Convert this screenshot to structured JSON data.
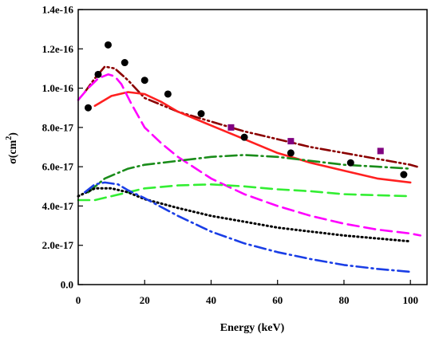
{
  "chart_data": {
    "type": "line",
    "xlabel": "Energy (keV)",
    "ylabel": "σ(cm",
    "ylabel_sup": "2",
    "ylabel_close": ")",
    "xlim": [
      0,
      105
    ],
    "ylim": [
      0,
      1.4e-16
    ],
    "x_ticks": [
      0,
      20,
      40,
      60,
      80,
      100
    ],
    "x_tick_labels": [
      "0",
      "20",
      "40",
      "60",
      "80",
      "100"
    ],
    "y_ticks": [
      0,
      2e-17,
      4e-17,
      6e-17,
      8e-17,
      1e-16,
      1.2e-16,
      1.4e-16
    ],
    "y_tick_labels": [
      "0.0",
      "2.0e-17",
      "4.0e-17",
      "6.0e-17",
      "8.0e-17",
      "1.0e-16",
      "1.2e-16",
      "1.4e-16"
    ],
    "grid": false,
    "series": [
      {
        "kind": "points",
        "marker": "circle",
        "color": "#000000",
        "x": [
          3,
          6,
          9,
          14,
          20,
          27,
          37,
          50,
          64,
          82,
          98
        ],
        "y": [
          9e-17,
          1.07e-16,
          1.22e-16,
          1.13e-16,
          1.04e-16,
          9.7e-17,
          8.7e-17,
          7.5e-17,
          6.7e-17,
          6.2e-17,
          5.6e-17
        ]
      },
      {
        "kind": "points",
        "marker": "square",
        "color": "#800080",
        "x": [
          46,
          64,
          91
        ],
        "y": [
          8e-17,
          7.3e-17,
          6.8e-17
        ]
      },
      {
        "kind": "line",
        "style": "dash-dot-dot",
        "color": "#8b0000",
        "x": [
          2,
          5,
          8,
          11,
          15,
          20,
          30,
          40,
          50,
          60,
          70,
          80,
          90,
          100,
          102
        ],
        "y": [
          9.8e-17,
          1.05e-16,
          1.11e-16,
          1.1e-16,
          1.04e-16,
          9.5e-17,
          8.8e-17,
          8.3e-17,
          7.8e-17,
          7.4e-17,
          7e-17,
          6.7e-17,
          6.4e-17,
          6.1e-17,
          6e-17
        ]
      },
      {
        "kind": "line",
        "style": "solid",
        "color": "#ff2020",
        "x": [
          5,
          10,
          15,
          20,
          25,
          30,
          40,
          50,
          60,
          70,
          80,
          90,
          100
        ],
        "y": [
          9.1e-17,
          9.6e-17,
          9.8e-17,
          9.7e-17,
          9.3e-17,
          8.8e-17,
          8.1e-17,
          7.4e-17,
          6.7e-17,
          6.2e-17,
          5.8e-17,
          5.4e-17,
          5.2e-17
        ]
      },
      {
        "kind": "line",
        "style": "dashed",
        "color": "#ff00ff",
        "x": [
          0,
          3,
          6,
          9,
          11,
          13,
          16,
          20,
          25,
          30,
          40,
          50,
          60,
          70,
          80,
          90,
          100,
          103
        ],
        "y": [
          9.4e-17,
          1e-16,
          1.05e-16,
          1.07e-16,
          1.06e-16,
          1.02e-16,
          9.2e-17,
          8e-17,
          7.2e-17,
          6.5e-17,
          5.4e-17,
          4.6e-17,
          4e-17,
          3.5e-17,
          3.1e-17,
          2.8e-17,
          2.6e-17,
          2.5e-17
        ]
      },
      {
        "kind": "line",
        "style": "dash-dot",
        "color": "#1a8c1a",
        "x": [
          3,
          8,
          15,
          20,
          30,
          40,
          50,
          60,
          70,
          80,
          90,
          100
        ],
        "y": [
          4.7e-17,
          5.4e-17,
          5.9e-17,
          6.1e-17,
          6.3e-17,
          6.5e-17,
          6.6e-17,
          6.5e-17,
          6.3e-17,
          6.1e-17,
          6e-17,
          5.9e-17
        ]
      },
      {
        "kind": "line",
        "style": "dashed",
        "color": "#33ee33",
        "x": [
          0,
          5,
          10,
          20,
          30,
          40,
          50,
          60,
          70,
          80,
          90,
          100
        ],
        "y": [
          4.3e-17,
          4.3e-17,
          4.5e-17,
          4.9e-17,
          5.05e-17,
          5.1e-17,
          5e-17,
          4.85e-17,
          4.75e-17,
          4.6e-17,
          4.55e-17,
          4.5e-17
        ]
      },
      {
        "kind": "line",
        "style": "dotted",
        "color": "#000000",
        "x": [
          0,
          5,
          10,
          15,
          20,
          30,
          40,
          50,
          60,
          70,
          80,
          90,
          100
        ],
        "y": [
          4.5e-17,
          4.9e-17,
          4.9e-17,
          4.7e-17,
          4.35e-17,
          3.9e-17,
          3.5e-17,
          3.2e-17,
          2.9e-17,
          2.7e-17,
          2.5e-17,
          2.35e-17,
          2.2e-17
        ]
      },
      {
        "kind": "line",
        "style": "dash-dot",
        "color": "#1a3ee6",
        "x": [
          2,
          5,
          8,
          12,
          15,
          20,
          30,
          40,
          50,
          60,
          70,
          80,
          90,
          100
        ],
        "y": [
          4.7e-17,
          5.1e-17,
          5.2e-17,
          5.1e-17,
          4.8e-17,
          4.4e-17,
          3.5e-17,
          2.7e-17,
          2.1e-17,
          1.65e-17,
          1.3e-17,
          1e-17,
          8e-18,
          6.5e-18
        ]
      }
    ]
  }
}
